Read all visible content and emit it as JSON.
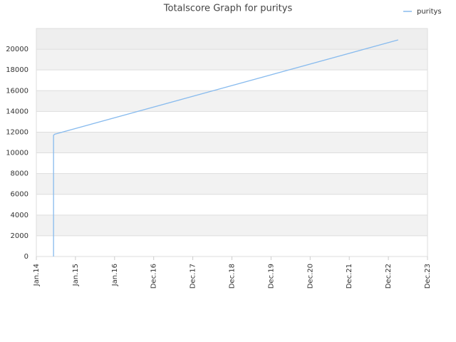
{
  "chart_data": {
    "type": "line",
    "title": "Totalscore Graph for puritys",
    "series": [
      {
        "name": "puritys",
        "color": "#88bbee",
        "x": [
          0.44,
          0.44,
          0.47,
          9.25
        ],
        "values": [
          0,
          11700,
          11800,
          20900
        ]
      }
    ],
    "xlim": [
      0,
      10
    ],
    "xticks": [
      {
        "value": 0,
        "label": "Jan.14"
      },
      {
        "value": 1,
        "label": "Jan.15"
      },
      {
        "value": 2,
        "label": "Jan.16"
      },
      {
        "value": 3,
        "label": "Dec.16"
      },
      {
        "value": 4,
        "label": "Dec.17"
      },
      {
        "value": 5,
        "label": "Dec.18"
      },
      {
        "value": 6,
        "label": "Dec.19"
      },
      {
        "value": 7,
        "label": "Dec.20"
      },
      {
        "value": 8,
        "label": "Dec.21"
      },
      {
        "value": 9,
        "label": "Dec.22"
      },
      {
        "value": 10,
        "label": "Dec.23"
      }
    ],
    "ylim": [
      0,
      22000
    ],
    "yticks": [
      0,
      2000,
      4000,
      6000,
      8000,
      10000,
      12000,
      14000,
      16000,
      18000,
      20000
    ],
    "grid": true,
    "legend": "top-right"
  }
}
